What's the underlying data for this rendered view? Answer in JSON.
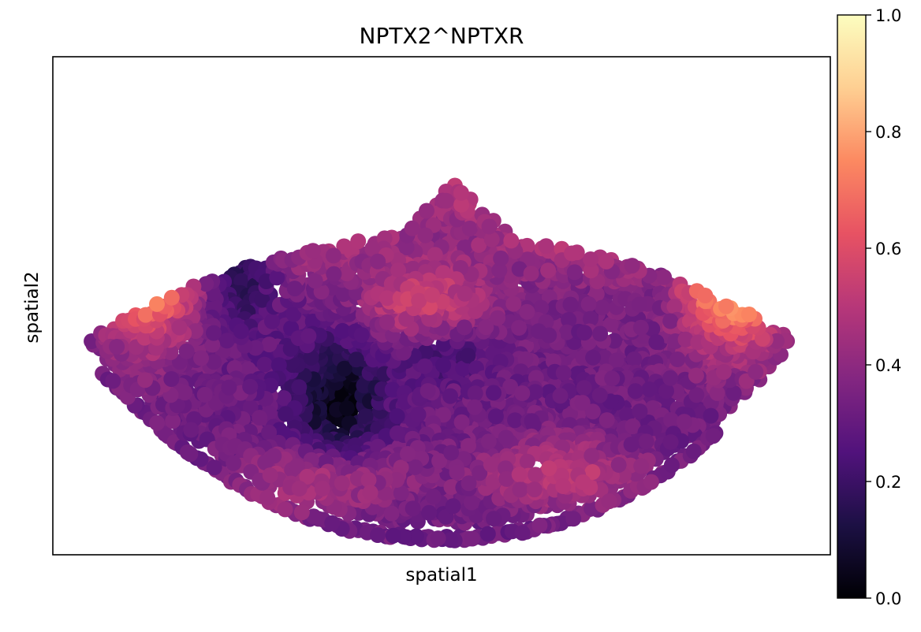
{
  "chart_data": {
    "type": "scatter",
    "title": "NPTX2^NPTXR",
    "xlabel": "spatial1",
    "ylabel": "spatial2",
    "x_ticks": [],
    "y_ticks": [],
    "grid": false,
    "colormap": "magma",
    "colorbar": {
      "min": 0.0,
      "max": 1.0,
      "ticks": [
        "0.0",
        "0.2",
        "0.4",
        "0.6",
        "0.8",
        "1.0"
      ]
    },
    "colormap_stops": [
      "#000004",
      "#1c1044",
      "#51127c",
      "#832681",
      "#b73779",
      "#e75263",
      "#fc8961",
      "#fecf92",
      "#fcfdbf"
    ]
  }
}
